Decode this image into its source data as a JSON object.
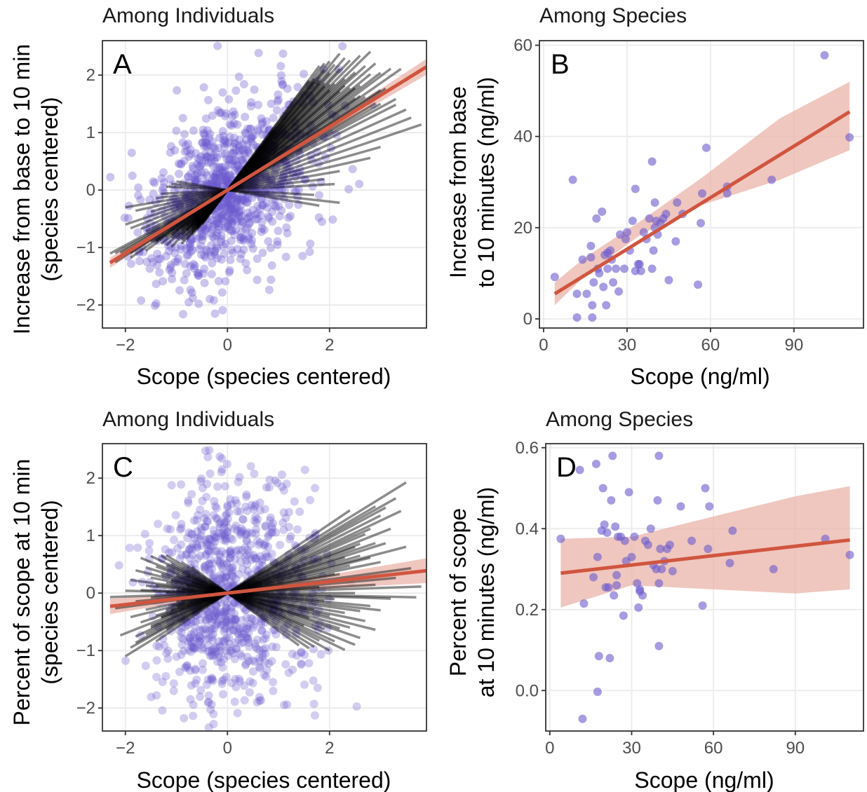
{
  "colors": {
    "points": "#6a5acd",
    "fit_line": "#d1553f",
    "ribbon": "#e9b4aa",
    "individual_lines": "#000000",
    "grid": "#ebebeb",
    "panel_border": "#333333"
  },
  "chart_data": [
    {
      "panel": "A",
      "type": "scatter",
      "title": "Among Individuals",
      "xlabel": "Scope (species centered)",
      "ylabel": [
        "Increase from base to 10 min",
        "(species centered)"
      ],
      "xlim": [
        -2.45,
        3.9
      ],
      "ylim": [
        -2.4,
        2.6
      ],
      "xticks": [
        -2,
        0,
        2
      ],
      "yticks": [
        -2,
        -1,
        0,
        1,
        2
      ],
      "xticklabels": [
        "−2",
        "0",
        "2"
      ],
      "yticklabels": [
        "−2",
        "−1",
        "0",
        "1",
        "2"
      ],
      "scatter": {
        "n": 950,
        "sx": 0.75,
        "sy": 0.75,
        "corr": 0.45,
        "x_range": [
          -2.35,
          3.8
        ],
        "y_range": [
          -2.35,
          2.6
        ],
        "opacity": 0.35
      },
      "fit": {
        "slope": 0.55,
        "intercept": 0,
        "x_range": [
          -2.3,
          3.9
        ],
        "ci_halfwidth_at_x0": 0.02,
        "ci_growth": 0.03
      },
      "individual_lines": {
        "slopes": [
          0.48,
          0.52,
          0.55,
          0.57,
          0.6,
          0.62,
          0.64,
          0.66,
          0.68,
          0.7,
          0.72,
          0.74,
          0.76,
          0.78,
          0.8,
          0.82,
          0.84,
          0.86,
          0.88,
          0.9,
          0.92,
          0.94,
          0.96,
          0.98,
          1.0,
          1.02,
          1.04,
          1.06,
          1.08,
          1.1,
          1.12,
          1.14,
          1.16,
          1.2,
          0.3,
          0.35,
          0.4,
          0.45,
          0.25,
          0.2,
          0.15,
          0.1,
          0.05,
          -0.05,
          -0.1,
          -0.15,
          0.58,
          0.63,
          0.71,
          0.79,
          0.87,
          0.95,
          1.03,
          1.11,
          1.19,
          0.5
        ],
        "x_ends": [
          [
            -2.3,
            3.3
          ],
          [
            -2.1,
            2.9
          ],
          [
            -1.8,
            3.5
          ],
          [
            -2.2,
            3.1
          ],
          [
            -1.5,
            2.7
          ],
          [
            -1.9,
            3.4
          ],
          [
            -1.4,
            2.5
          ],
          [
            -1.6,
            3.2
          ],
          [
            -1.2,
            3.0
          ],
          [
            -1.0,
            2.6
          ],
          [
            -1.3,
            2.8
          ],
          [
            -0.9,
            2.4
          ],
          [
            -1.1,
            2.9
          ],
          [
            -0.8,
            2.2
          ],
          [
            -1.2,
            2.7
          ],
          [
            -0.7,
            2.5
          ],
          [
            -1.0,
            2.3
          ],
          [
            -0.9,
            2.8
          ],
          [
            -0.8,
            2.1
          ],
          [
            -1.1,
            2.6
          ],
          [
            -0.7,
            2.0
          ],
          [
            -0.6,
            2.4
          ],
          [
            -0.9,
            2.2
          ],
          [
            -0.8,
            1.9
          ],
          [
            -0.7,
            2.3
          ],
          [
            -0.6,
            2.0
          ],
          [
            -0.9,
            2.1
          ],
          [
            -0.7,
            1.8
          ],
          [
            -0.8,
            2.2
          ],
          [
            -0.6,
            1.9
          ],
          [
            -0.7,
            2.0
          ],
          [
            -0.5,
            1.7
          ],
          [
            -0.6,
            1.9
          ],
          [
            -0.5,
            1.8
          ],
          [
            -2.0,
            3.8
          ],
          [
            -1.9,
            3.6
          ],
          [
            -1.7,
            3.5
          ],
          [
            -1.6,
            3.3
          ],
          [
            -1.5,
            3.0
          ],
          [
            -1.8,
            2.8
          ],
          [
            -2.0,
            2.2
          ],
          [
            -1.4,
            1.9
          ],
          [
            -1.3,
            2.1
          ],
          [
            -1.2,
            1.7
          ],
          [
            -1.1,
            2.2
          ],
          [
            -1.0,
            1.8
          ],
          [
            -1.9,
            3.0
          ],
          [
            -1.4,
            2.6
          ],
          [
            -1.1,
            2.5
          ],
          [
            -0.9,
            2.3
          ],
          [
            -0.8,
            2.0
          ],
          [
            -0.7,
            1.9
          ],
          [
            -0.6,
            1.8
          ],
          [
            -0.6,
            1.7
          ],
          [
            -0.5,
            1.6
          ],
          [
            -2.2,
            3.0
          ]
        ],
        "opacity": 0.45
      },
      "corner_label": "A"
    },
    {
      "panel": "B",
      "type": "scatter",
      "title": "Among Species",
      "xlabel": "Scope (ng/ml)",
      "ylabel": [
        "Increase from base",
        "to 10 minutes (ng/ml)"
      ],
      "xlim": [
        -1.5,
        115
      ],
      "ylim": [
        -2,
        61
      ],
      "xticks": [
        0,
        30,
        60,
        90
      ],
      "yticks": [
        0,
        20,
        40,
        60
      ],
      "xticklabels": [
        "0",
        "30",
        "60",
        "90"
      ],
      "yticklabels": [
        "0",
        "20",
        "40",
        "60"
      ],
      "points": [
        [
          4,
          9.2
        ],
        [
          10.5,
          30.5
        ],
        [
          12,
          5.5
        ],
        [
          12,
          0.3
        ],
        [
          14,
          13
        ],
        [
          15.5,
          5.5
        ],
        [
          17,
          16
        ],
        [
          17,
          13.5
        ],
        [
          17.5,
          3
        ],
        [
          17.5,
          0.3
        ],
        [
          18,
          8
        ],
        [
          19,
          22
        ],
        [
          19.5,
          11
        ],
        [
          20,
          10
        ],
        [
          21,
          23.5
        ],
        [
          21.5,
          7
        ],
        [
          22,
          14
        ],
        [
          22.5,
          3
        ],
        [
          23,
          11
        ],
        [
          23,
          14.5
        ],
        [
          24,
          15
        ],
        [
          24.5,
          13
        ],
        [
          25,
          8
        ],
        [
          26,
          11
        ],
        [
          27,
          6
        ],
        [
          27.5,
          18.5
        ],
        [
          29,
          11
        ],
        [
          29.5,
          17.5
        ],
        [
          30,
          19
        ],
        [
          31,
          15
        ],
        [
          32,
          21.5
        ],
        [
          33,
          10.5
        ],
        [
          33,
          28.5
        ],
        [
          34,
          12
        ],
        [
          34.5,
          12
        ],
        [
          35,
          10.5
        ],
        [
          36,
          19
        ],
        [
          37,
          17.5
        ],
        [
          38,
          22
        ],
        [
          39,
          11
        ],
        [
          39,
          34.5
        ],
        [
          39.5,
          15
        ],
        [
          40,
          20
        ],
        [
          40,
          25.5
        ],
        [
          40.5,
          21.5
        ],
        [
          41,
          18.5
        ],
        [
          42,
          21
        ],
        [
          43,
          22
        ],
        [
          44,
          23
        ],
        [
          45,
          8.5
        ],
        [
          47.5,
          17
        ],
        [
          48,
          25.5
        ],
        [
          50,
          23
        ],
        [
          55.5,
          7.5
        ],
        [
          56.5,
          21
        ],
        [
          57,
          27.5
        ],
        [
          58.5,
          37.5
        ],
        [
          66,
          27.5
        ],
        [
          66,
          29
        ],
        [
          82,
          30.5
        ],
        [
          101,
          57.8
        ],
        [
          110,
          39.8
        ]
      ],
      "fit": {
        "x0": 4,
        "x1": 110,
        "y0": 5.5,
        "y1": 45.4,
        "ci": [
          [
            4,
            3.0,
            8.0
          ],
          [
            15,
            9.5,
            13.5
          ],
          [
            35,
            18.5,
            21.5
          ],
          [
            57,
            25.0,
            31.0
          ],
          [
            85,
            30.5,
            44.0
          ],
          [
            110,
            37.0,
            52.0
          ]
        ]
      },
      "opacity": 0.6,
      "corner_label": "B"
    },
    {
      "panel": "C",
      "type": "scatter",
      "title": "Among Individuals",
      "xlabel": "Scope (species centered)",
      "ylabel": [
        "Percent of scope at 10 min",
        "(species centered)"
      ],
      "xlim": [
        -2.45,
        3.9
      ],
      "ylim": [
        -2.4,
        2.6
      ],
      "xticks": [
        -2,
        0,
        2
      ],
      "yticks": [
        -2,
        -1,
        0,
        1,
        2
      ],
      "xticklabels": [
        "−2",
        "0",
        "2"
      ],
      "yticklabels": [
        "−2",
        "−1",
        "0",
        "1",
        "2"
      ],
      "scatter": {
        "n": 950,
        "sx": 0.75,
        "sy": 0.9,
        "corr": 0.05,
        "x_range": [
          -2.35,
          3.8
        ],
        "y_range": [
          -2.35,
          2.6
        ],
        "opacity": 0.3
      },
      "fit": {
        "slope": 0.1,
        "intercept": 0,
        "x_range": [
          -2.3,
          3.9
        ],
        "ci_halfwidth_at_x0": 0.02,
        "ci_growth": 0.05
      },
      "individual_lines": {
        "slopes": [
          0.55,
          0.5,
          0.45,
          0.42,
          0.38,
          0.35,
          0.32,
          0.3,
          0.28,
          0.25,
          0.22,
          0.2,
          0.18,
          0.15,
          0.12,
          0.1,
          0.08,
          0.05,
          0.03,
          0.0,
          -0.03,
          -0.05,
          -0.08,
          -0.1,
          -0.12,
          -0.15,
          -0.18,
          -0.2,
          -0.22,
          -0.25,
          -0.28,
          -0.3,
          -0.33,
          -0.36,
          -0.4,
          -0.43,
          -0.46,
          -0.5,
          -0.55,
          0.48,
          0.4,
          0.33,
          0.27,
          0.16,
          0.06,
          -0.07,
          -0.17,
          -0.27,
          -0.38,
          -0.6,
          0.6,
          0.52,
          -0.65,
          0.23,
          -0.02
        ],
        "x_ends": [
          [
            -2.0,
            3.5
          ],
          [
            -1.9,
            3.3
          ],
          [
            -1.6,
            3.0
          ],
          [
            -1.8,
            3.4
          ],
          [
            -1.5,
            2.7
          ],
          [
            -2.1,
            3.2
          ],
          [
            -1.3,
            2.5
          ],
          [
            -1.7,
            2.9
          ],
          [
            -1.4,
            3.1
          ],
          [
            -1.2,
            2.6
          ],
          [
            -1.9,
            2.8
          ],
          [
            -1.1,
            2.4
          ],
          [
            -1.6,
            3.0
          ],
          [
            -1.0,
            2.2
          ],
          [
            -2.2,
            3.6
          ],
          [
            -1.3,
            2.7
          ],
          [
            -1.8,
            3.3
          ],
          [
            -1.5,
            2.9
          ],
          [
            -2.3,
            3.8
          ],
          [
            -1.2,
            2.5
          ],
          [
            -1.7,
            3.2
          ],
          [
            -1.0,
            2.1
          ],
          [
            -1.6,
            2.8
          ],
          [
            -1.4,
            3.0
          ],
          [
            -1.9,
            2.6
          ],
          [
            -1.2,
            2.3
          ],
          [
            -1.5,
            2.7
          ],
          [
            -1.1,
            2.0
          ],
          [
            -1.8,
            2.9
          ],
          [
            -1.3,
            2.4
          ],
          [
            -1.6,
            2.2
          ],
          [
            -1.0,
            2.6
          ],
          [
            -1.4,
            1.9
          ],
          [
            -1.7,
            2.5
          ],
          [
            -1.2,
            2.1
          ],
          [
            -1.5,
            2.3
          ],
          [
            -1.1,
            1.8
          ],
          [
            -1.3,
            2.0
          ],
          [
            -1.2,
            1.7
          ],
          [
            -1.8,
            3.1
          ],
          [
            -1.5,
            2.8
          ],
          [
            -1.3,
            2.6
          ],
          [
            -1.1,
            2.3
          ],
          [
            -0.9,
            2.1
          ],
          [
            -0.8,
            1.8
          ],
          [
            -0.9,
            1.9
          ],
          [
            -0.8,
            1.7
          ],
          [
            -0.7,
            1.6
          ],
          [
            -0.8,
            1.5
          ],
          [
            -0.9,
            1.6
          ],
          [
            -1.4,
            2.4
          ],
          [
            -1.2,
            2.9
          ],
          [
            -0.7,
            1.4
          ],
          [
            -1.0,
            3.5
          ],
          [
            -2.0,
            3.7
          ]
        ],
        "opacity": 0.45
      },
      "corner_label": "C"
    },
    {
      "panel": "D",
      "type": "scatter",
      "title": "Among Species",
      "xlabel": "Scope (ng/ml)",
      "ylabel": [
        "Percent of scope",
        "at 10 minutes (ng/ml)"
      ],
      "xlim": [
        -1.5,
        115
      ],
      "ylim": [
        -0.1,
        0.61
      ],
      "xticks": [
        0,
        30,
        60,
        90
      ],
      "yticks": [
        0.0,
        0.2,
        0.4,
        0.6
      ],
      "xticklabels": [
        "0",
        "30",
        "60",
        "90"
      ],
      "yticklabels": [
        "0.0",
        "0.2",
        "0.4",
        "0.6"
      ],
      "points": [
        [
          4,
          0.375
        ],
        [
          11,
          0.545
        ],
        [
          12,
          -0.07
        ],
        [
          12.5,
          0.215
        ],
        [
          16,
          0.28
        ],
        [
          17,
          0.56
        ],
        [
          17.5,
          0.33
        ],
        [
          17.5,
          -0.003
        ],
        [
          18,
          0.085
        ],
        [
          19,
          0.395
        ],
        [
          19.5,
          0.5
        ],
        [
          20,
          0.41
        ],
        [
          20.5,
          0.255
        ],
        [
          21,
          0.39
        ],
        [
          21.5,
          0.255
        ],
        [
          22,
          0.08
        ],
        [
          22.5,
          0.47
        ],
        [
          23,
          0.58
        ],
        [
          23.5,
          0.235
        ],
        [
          24,
          0.405
        ],
        [
          24.5,
          0.285
        ],
        [
          24.5,
          0.26
        ],
        [
          25,
          0.38
        ],
        [
          26,
          0.38
        ],
        [
          27,
          0.185
        ],
        [
          27.5,
          0.37
        ],
        [
          28,
          0.32
        ],
        [
          29,
          0.49
        ],
        [
          30,
          0.33
        ],
        [
          31,
          0.38
        ],
        [
          32,
          0.265
        ],
        [
          32.5,
          0.205
        ],
        [
          33,
          0.25
        ],
        [
          33,
          0.245
        ],
        [
          34,
          0.235
        ],
        [
          35,
          0.37
        ],
        [
          36,
          0.36
        ],
        [
          37,
          0.4
        ],
        [
          38,
          0.31
        ],
        [
          39,
          0.3
        ],
        [
          39.5,
          0.47
        ],
        [
          40,
          0.58
        ],
        [
          40,
          0.11
        ],
        [
          40,
          0.265
        ],
        [
          40.5,
          0.35
        ],
        [
          41,
          0.3
        ],
        [
          42,
          0.32
        ],
        [
          43,
          0.35
        ],
        [
          44,
          0.36
        ],
        [
          45,
          0.295
        ],
        [
          48,
          0.455
        ],
        [
          52,
          0.37
        ],
        [
          56,
          0.21
        ],
        [
          57,
          0.5
        ],
        [
          58,
          0.35
        ],
        [
          58.5,
          0.455
        ],
        [
          66,
          0.315
        ],
        [
          67,
          0.395
        ],
        [
          82,
          0.3
        ],
        [
          101,
          0.375
        ],
        [
          110,
          0.335
        ]
      ],
      "fit": {
        "x0": 4,
        "x1": 110,
        "y0": 0.29,
        "y1": 0.372,
        "ci": [
          [
            4,
            0.205,
            0.375
          ],
          [
            30,
            0.26,
            0.38
          ],
          [
            60,
            0.25,
            0.43
          ],
          [
            90,
            0.24,
            0.48
          ],
          [
            110,
            0.25,
            0.505
          ]
        ]
      },
      "opacity": 0.6,
      "corner_label": "D"
    }
  ]
}
